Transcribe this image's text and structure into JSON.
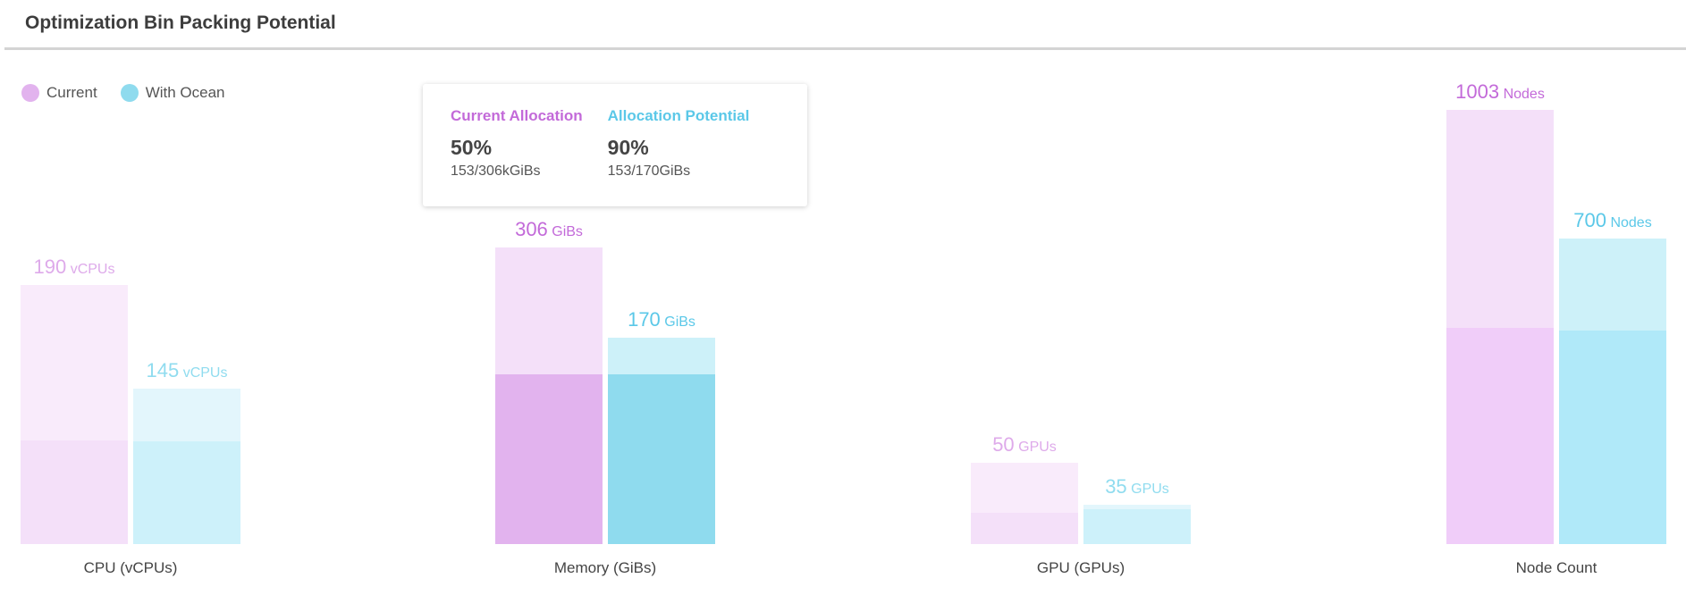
{
  "title": "Optimization Bin Packing Potential",
  "legend": [
    {
      "label": "Current",
      "color": "#e2b3ee"
    },
    {
      "label": "With Ocean",
      "color": "#8fdbee"
    }
  ],
  "tooltip": {
    "current": {
      "heading": "Current Allocation",
      "percent": "50%",
      "detail": "153/306kGiBs",
      "color": "#c36ad9"
    },
    "potential": {
      "heading": "Allocation Potential",
      "percent": "90%",
      "detail": "153/170GiBs",
      "color": "#5bc8e8"
    }
  },
  "chart_data": {
    "type": "bar",
    "categories": [
      "CPU (vCPUs)",
      "Memory (GiBs)",
      "GPU (GPUs)",
      "Node Count"
    ],
    "series_names": [
      "Current",
      "With Ocean"
    ],
    "groups": [
      {
        "category": "CPU (vCPUs)",
        "bars": [
          {
            "series": "Current",
            "value": 190,
            "unit": "vCPUs",
            "fill": 0.58,
            "allocated_fill": 0.232,
            "top_color": "#f9ebfb",
            "bottom_color": "#f4e0f9",
            "text_color": "#deaaea"
          },
          {
            "series": "With Ocean",
            "value": 145,
            "unit": "vCPUs",
            "fill": 0.348,
            "allocated_fill": 0.23,
            "top_color": "#e3f6fc",
            "bottom_color": "#cdf1fa",
            "text_color": "#90dcef"
          }
        ]
      },
      {
        "category": "Memory (GiBs)",
        "bars": [
          {
            "series": "Current",
            "value": 306,
            "unit": "GiBs",
            "fill": 0.664,
            "allocated_fill": 0.38,
            "top_color": "#f4e0f9",
            "bottom_color": "#e2b3ee",
            "text_color": "#c36ad9"
          },
          {
            "series": "With Ocean",
            "value": 170,
            "unit": "GiBs",
            "fill": 0.462,
            "allocated_fill": 0.38,
            "top_color": "#cdf1f9",
            "bottom_color": "#8fdbee",
            "text_color": "#5bc8e8"
          }
        ]
      },
      {
        "category": "GPU (GPUs)",
        "bars": [
          {
            "series": "Current",
            "value": 50,
            "unit": "GPUs",
            "fill": 0.182,
            "allocated_fill": 0.07,
            "top_color": "#f9ebfb",
            "bottom_color": "#f4e0f9",
            "text_color": "#deaaea"
          },
          {
            "series": "With Ocean",
            "value": 35,
            "unit": "GPUs",
            "fill": 0.088,
            "allocated_fill": 0.078,
            "top_color": "#e3f6fc",
            "bottom_color": "#cdf1fa",
            "text_color": "#90dcef"
          }
        ]
      },
      {
        "category": "Node Count",
        "bars": [
          {
            "series": "Current",
            "value": 1003,
            "unit": "Nodes",
            "fill": 0.972,
            "allocated_fill": 0.484,
            "top_color": "#f4e0f9",
            "bottom_color": "#f0cdf9",
            "text_color": "#c36ad9"
          },
          {
            "series": "With Ocean",
            "value": 700,
            "unit": "Nodes",
            "fill": 0.684,
            "allocated_fill": 0.478,
            "top_color": "#cdf1f9",
            "bottom_color": "#b0e9f9",
            "text_color": "#5bc8e8"
          }
        ]
      }
    ]
  }
}
